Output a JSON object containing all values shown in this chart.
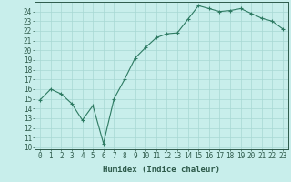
{
  "x": [
    0,
    1,
    2,
    3,
    4,
    5,
    6,
    7,
    8,
    9,
    10,
    11,
    12,
    13,
    14,
    15,
    16,
    17,
    18,
    19,
    20,
    21,
    22,
    23
  ],
  "y": [
    14.9,
    16.0,
    15.5,
    14.5,
    12.8,
    14.3,
    10.4,
    15.0,
    17.0,
    19.2,
    20.3,
    21.3,
    21.7,
    21.8,
    23.2,
    24.6,
    24.3,
    24.0,
    24.1,
    24.3,
    23.8,
    23.3,
    23.0,
    22.2
  ],
  "line_color": "#2d7a62",
  "marker": "+",
  "marker_size": 3.5,
  "marker_lw": 0.8,
  "bg_color": "#c8eeeb",
  "grid_color": "#a8d8d4",
  "xlabel": "Humidex (Indice chaleur)",
  "ylabel_ticks": [
    10,
    11,
    12,
    13,
    14,
    15,
    16,
    17,
    18,
    19,
    20,
    21,
    22,
    23,
    24
  ],
  "xlim": [
    -0.5,
    23.5
  ],
  "ylim": [
    9.8,
    25.0
  ],
  "tick_color": "#2d5a4a",
  "label_fontsize": 6.5,
  "tick_fontsize": 5.5,
  "linewidth": 0.8
}
